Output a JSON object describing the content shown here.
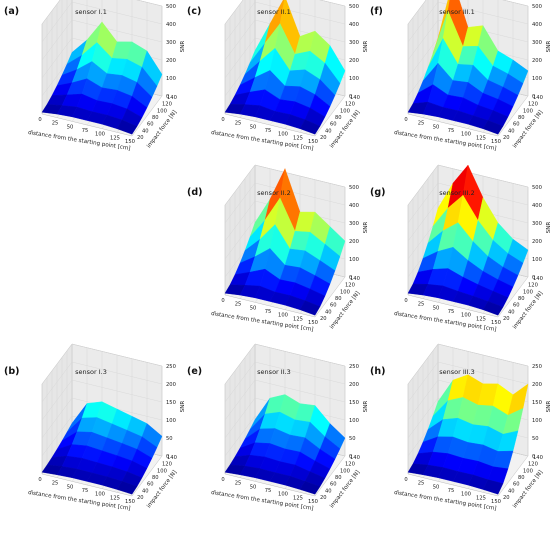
{
  "shared": {
    "xlabel": "distance from the starting point [cm]",
    "ylabel": "impact force [N]",
    "zlabel": "SNR",
    "x_ticks": [
      "0",
      "25",
      "50",
      "75",
      "100",
      "125",
      "150"
    ],
    "y_ticks": [
      "20",
      "40",
      "60",
      "80",
      "100",
      "120",
      "140"
    ],
    "colormap": "jet"
  },
  "chart_data": [
    {
      "id": "a",
      "type": "surface",
      "label": "(a)",
      "title": "sensor I.1",
      "x": [
        0,
        25,
        50,
        75,
        100,
        125,
        150
      ],
      "y": [
        20,
        40,
        60,
        80,
        100,
        120,
        140
      ],
      "z_ticks": [
        "0",
        "100",
        "200",
        "300",
        "400",
        "500"
      ],
      "zlim": [
        0,
        500
      ],
      "z_at_max_force": [
        120,
        210,
        330,
        240,
        260,
        230,
        120
      ],
      "z_at_min_force": [
        10,
        20,
        25,
        25,
        25,
        20,
        10
      ]
    },
    {
      "id": "c",
      "type": "surface",
      "label": "(c)",
      "title": "sensor II.1",
      "x": [
        0,
        25,
        50,
        75,
        100,
        125,
        150
      ],
      "y": [
        20,
        40,
        60,
        80,
        100,
        120,
        140
      ],
      "z_ticks": [
        "0",
        "100",
        "200",
        "300",
        "400",
        "500"
      ],
      "zlim": [
        0,
        500
      ],
      "z_at_max_force": [
        130,
        300,
        470,
        270,
        320,
        260,
        140
      ],
      "z_at_min_force": [
        10,
        20,
        25,
        25,
        25,
        20,
        10
      ]
    },
    {
      "id": "f",
      "type": "surface",
      "label": "(f)",
      "title": "sensor III.1",
      "x": [
        0,
        25,
        50,
        75,
        100,
        125,
        150
      ],
      "y": [
        20,
        40,
        60,
        80,
        100,
        120,
        140
      ],
      "z_ticks": [
        "0",
        "100",
        "200",
        "300",
        "400",
        "500"
      ],
      "zlim": [
        0,
        500
      ],
      "z_at_max_force": [
        200,
        540,
        300,
        330,
        210,
        180,
        140
      ],
      "z_at_min_force": [
        10,
        20,
        25,
        25,
        25,
        20,
        10
      ]
    },
    {
      "id": "d",
      "type": "surface",
      "label": "(d)",
      "title": "sensor II.2",
      "x": [
        0,
        25,
        50,
        75,
        100,
        125,
        150
      ],
      "y": [
        20,
        40,
        60,
        80,
        100,
        120,
        140
      ],
      "z_ticks": [
        "0",
        "100",
        "200",
        "300",
        "400",
        "500"
      ],
      "zlim": [
        0,
        500
      ],
      "z_at_max_force": [
        180,
        330,
        520,
        300,
        320,
        260,
        200
      ],
      "z_at_min_force": [
        10,
        20,
        25,
        25,
        25,
        20,
        10
      ]
    },
    {
      "id": "g",
      "type": "surface",
      "label": "(g)",
      "title": "sensor III.2",
      "x": [
        0,
        25,
        50,
        75,
        100,
        125,
        150
      ],
      "y": [
        20,
        40,
        60,
        80,
        100,
        120,
        140
      ],
      "z_ticks": [
        "0",
        "100",
        "200",
        "300",
        "400",
        "500"
      ],
      "zlim": [
        0,
        500
      ],
      "z_at_max_force": [
        260,
        420,
        540,
        380,
        260,
        190,
        150
      ],
      "z_at_min_force": [
        10,
        20,
        25,
        25,
        25,
        20,
        10
      ]
    },
    {
      "id": "b",
      "type": "surface",
      "label": "(b)",
      "title": "sensor I.3",
      "x": [
        0,
        25,
        50,
        75,
        100,
        125,
        150
      ],
      "y": [
        20,
        40,
        60,
        80,
        100,
        120,
        140
      ],
      "z_ticks": [
        "0",
        "50",
        "100",
        "150",
        "200",
        "250"
      ],
      "zlim": [
        0,
        250
      ],
      "z_at_max_force": [
        30,
        95,
        110,
        100,
        90,
        80,
        55
      ],
      "z_at_min_force": [
        5,
        8,
        10,
        10,
        10,
        8,
        5
      ]
    },
    {
      "id": "e",
      "type": "surface",
      "label": "(e)",
      "title": "sensor II.3",
      "x": [
        0,
        25,
        50,
        75,
        100,
        125,
        150
      ],
      "y": [
        20,
        40,
        60,
        80,
        100,
        120,
        140
      ],
      "z_ticks": [
        "0",
        "50",
        "100",
        "150",
        "200",
        "250"
      ],
      "zlim": [
        0,
        250
      ],
      "z_at_max_force": [
        40,
        110,
        130,
        115,
        120,
        80,
        50
      ],
      "z_at_min_force": [
        5,
        8,
        10,
        10,
        10,
        8,
        5
      ]
    },
    {
      "id": "h",
      "type": "surface",
      "label": "(h)",
      "title": "sensor III.3",
      "x": [
        0,
        25,
        50,
        75,
        100,
        125,
        150
      ],
      "y": [
        20,
        40,
        60,
        80,
        100,
        120,
        140
      ],
      "z_ticks": [
        "0",
        "50",
        "100",
        "150",
        "200",
        "250"
      ],
      "zlim": [
        0,
        250
      ],
      "z_at_max_force": [
        90,
        160,
        185,
        170,
        180,
        160,
        200
      ],
      "z_at_min_force": [
        5,
        8,
        10,
        10,
        10,
        8,
        5
      ]
    }
  ]
}
